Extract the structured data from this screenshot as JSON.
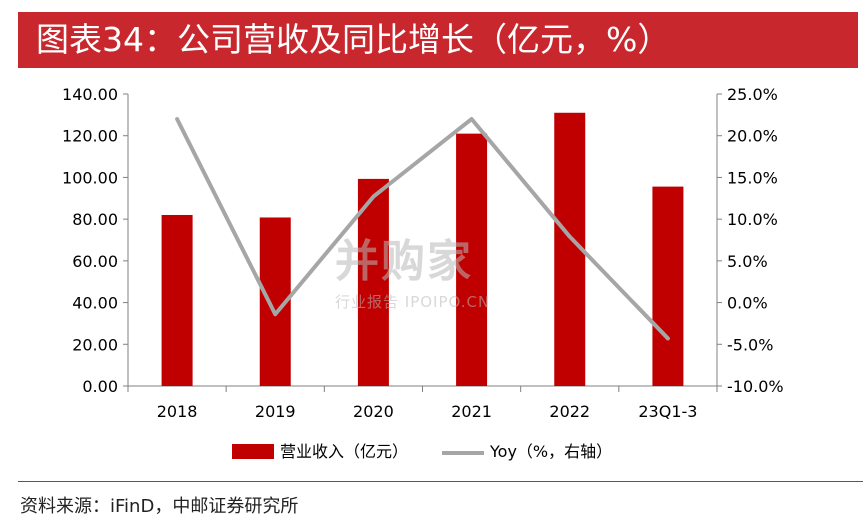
{
  "header": {
    "title": "图表34：公司营收及同比增长（亿元，%）"
  },
  "watermark": {
    "main": "并购家",
    "sub": "行业报告 IPOIPO.CN"
  },
  "source": "资料来源：iFinD，中邮证券研究所",
  "colors": {
    "accent": "#c8282d",
    "bar": "#c00000",
    "line": "#a6a6a6"
  },
  "chart_data": {
    "type": "bar",
    "categories": [
      "2018",
      "2019",
      "2020",
      "2021",
      "2022",
      "23Q1-3"
    ],
    "series": [
      {
        "name": "营业收入（亿元）",
        "type": "bar",
        "axis": "left",
        "values": [
          82.0,
          80.8,
          99.3,
          121.0,
          131.0,
          95.6
        ]
      },
      {
        "name": "Yoy（%，右轴）",
        "type": "line",
        "axis": "right",
        "values": [
          22.0,
          -1.4,
          12.7,
          22.0,
          7.9,
          -4.3
        ]
      }
    ],
    "left_axis": {
      "ylim": [
        0,
        140
      ],
      "ticks": [
        "0.00",
        "20.00",
        "40.00",
        "60.00",
        "80.00",
        "100.00",
        "120.00",
        "140.00"
      ]
    },
    "right_axis": {
      "ylim": [
        -10,
        25
      ],
      "ticks": [
        "-10.0%",
        "-5.0%",
        "0.0%",
        "5.0%",
        "10.0%",
        "15.0%",
        "20.0%",
        "25.0%"
      ]
    },
    "grid": false,
    "legend_position": "bottom"
  }
}
